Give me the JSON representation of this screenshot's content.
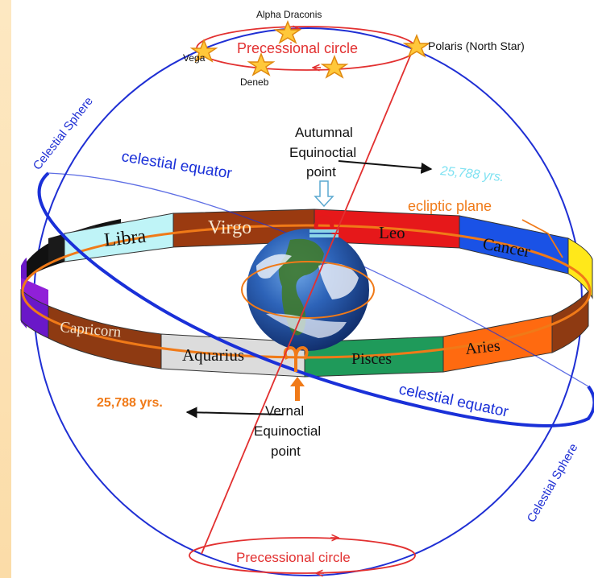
{
  "stars": {
    "alpha_draconis": "Alpha Draconis",
    "vega": "Vega",
    "deneb": "Deneb",
    "polaris": "Polaris (North Star)"
  },
  "labels": {
    "precessional_circle_top": "Precessional  circle",
    "precessional_circle_bottom": "Precessional circle",
    "celestial_sphere": "Celestial Sphere",
    "celestial_equator": "celestial  equator",
    "celestial_equator_right": "celestial equator",
    "ecliptic_plane": "ecliptic  plane",
    "autumnal_line1": "Autumnal",
    "autumnal_line2": "Equinoctial",
    "autumnal_line3": "point",
    "vernal_line1": "Vernal",
    "vernal_line2": "Equinoctial",
    "vernal_line3": "point",
    "years_right": "25,788 yrs.",
    "years_left": "25,788 yrs."
  },
  "zodiac": {
    "libra": "Libra",
    "virgo": "Virgo",
    "leo": "Leo",
    "cancer": "Cancer",
    "capricorn": "Capricorn",
    "aquarius": "Aquarius",
    "pisces": "Pisces",
    "aries": "Aries"
  },
  "colors": {
    "sphere": "#1f2fd4",
    "equator": "#1a30d8",
    "ecliptic": "#f07a18",
    "precession": "#e23030",
    "years_right": "#7fe2f2",
    "years_left": "#f07a18",
    "libra": "#bff4f7",
    "virgo": "#9a3a10",
    "leo": "#e6181a",
    "cancer": "#1a52e6",
    "capricorn": "#8e3a12",
    "aquarius": "#dcdcdc",
    "pisces": "#1f9a5a",
    "aries": "#ff6a10",
    "left_strip": "#fde3b6"
  }
}
